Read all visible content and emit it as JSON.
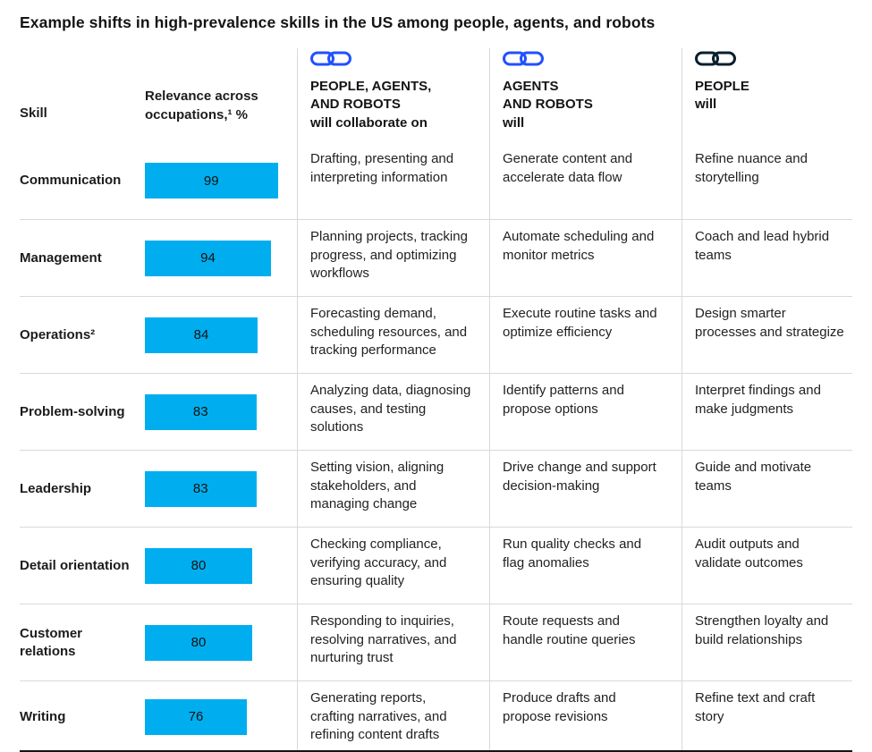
{
  "title": "Example shifts in high-prevalence skills in the US among people, agents, and robots",
  "colors": {
    "bar_fill": "#00AEEF",
    "chain_blue": "#2251FF",
    "chain_dark": "#0A1F2E",
    "grid_line": "#D9D9D9",
    "bottom_line": "#141414"
  },
  "header": {
    "skill": "Skill",
    "relevance": "Relevance across\noccupations,¹ %",
    "collab_title": "PEOPLE, AGENTS,\nAND ROBOTS",
    "collab_sub": "will collaborate on",
    "agents_title": "AGENTS\nAND ROBOTS",
    "agents_sub": "will",
    "people_title": "PEOPLE",
    "people_sub": "will",
    "collab_icon": "chain-link-icon",
    "agents_icon": "chain-link-icon",
    "people_icon": "chain-link-icon"
  },
  "rows": [
    {
      "skill": "Communication",
      "value": 99,
      "collab": "Drafting, presenting and interpreting information",
      "agents": "Generate content and accelerate data flow",
      "people": "Refine nuance and storytelling"
    },
    {
      "skill": "Management",
      "value": 94,
      "collab": "Planning projects, tracking progress, and optimizing workflows",
      "agents": "Automate scheduling and monitor metrics",
      "people": "Coach and lead hybrid teams"
    },
    {
      "skill": "Operations²",
      "value": 84,
      "collab": "Forecasting demand, scheduling resources, and tracking performance",
      "agents": "Execute routine tasks and optimize efficiency",
      "people": "Design smarter processes and strategize"
    },
    {
      "skill": "Problem-solving",
      "value": 83,
      "collab": "Analyzing data, diagnosing causes, and testing solutions",
      "agents": "Identify patterns and propose options",
      "people": "Interpret findings and make judgments"
    },
    {
      "skill": "Leadership",
      "value": 83,
      "collab": "Setting vision, aligning stakeholders, and managing change",
      "agents": "Drive change and support decision-making",
      "people": "Guide and motivate teams"
    },
    {
      "skill": "Detail orientation",
      "value": 80,
      "collab": "Checking compliance, verifying accuracy, and ensuring quality",
      "agents": "Run quality checks and flag anomalies",
      "people": "Audit outputs and validate outcomes"
    },
    {
      "skill": "Customer relations",
      "value": 80,
      "collab": "Responding to inquiries, resolving narratives, and nurturing trust",
      "agents": "Route requests and handle routine queries",
      "people": "Strengthen loyalty and build relationships"
    },
    {
      "skill": "Writing",
      "value": 76,
      "collab": "Generating reports, crafting narratives, and refining content drafts",
      "agents": "Produce drafts and propose revisions",
      "people": "Refine text and craft story"
    }
  ],
  "chart_data": {
    "type": "bar",
    "orientation": "horizontal",
    "title": "Example shifts in high-prevalence skills in the US among people, agents, and robots",
    "categories": [
      "Communication",
      "Management",
      "Operations",
      "Problem-solving",
      "Leadership",
      "Detail orientation",
      "Customer relations",
      "Writing"
    ],
    "values": [
      99,
      94,
      84,
      83,
      83,
      80,
      80,
      76
    ],
    "xlabel": "Relevance across occupations, %",
    "ylabel": "Skill",
    "xlim": [
      0,
      100
    ],
    "grid": false,
    "legend": false,
    "bar_color": "#00AEEF"
  }
}
